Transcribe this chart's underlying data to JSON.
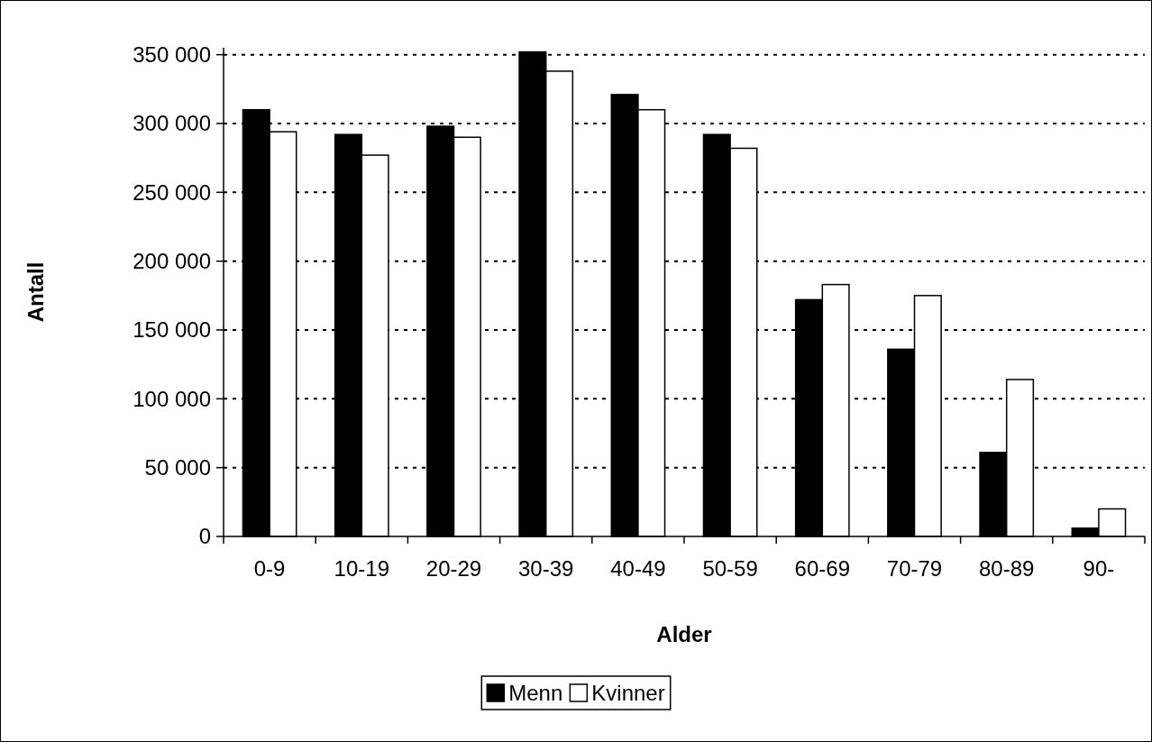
{
  "chart_data": {
    "type": "bar",
    "xlabel": "Alder",
    "ylabel": "Antall",
    "categories": [
      "0-9",
      "10-19",
      "20-29",
      "30-39",
      "40-49",
      "50-59",
      "60-69",
      "70-79",
      "80-89",
      "90-"
    ],
    "series": [
      {
        "name": "Menn",
        "color": "#000000",
        "values": [
          310000,
          292000,
          298000,
          352000,
          321000,
          292000,
          172000,
          136000,
          61000,
          6000
        ]
      },
      {
        "name": "Kvinner",
        "color": "#ffffff",
        "values": [
          294000,
          277000,
          290000,
          338000,
          310000,
          282000,
          183000,
          175000,
          114000,
          20000
        ]
      }
    ],
    "ylim": [
      0,
      355000
    ],
    "yticks": [
      {
        "value": 0,
        "label": "0"
      },
      {
        "value": 50000,
        "label": "50 000"
      },
      {
        "value": 100000,
        "label": "100 000"
      },
      {
        "value": 150000,
        "label": "150 000"
      },
      {
        "value": 200000,
        "label": "200 000"
      },
      {
        "value": 250000,
        "label": "250 000"
      },
      {
        "value": 300000,
        "label": "300 000"
      },
      {
        "value": 350000,
        "label": "350 000"
      }
    ],
    "grid": "y",
    "legend": "bottom"
  }
}
